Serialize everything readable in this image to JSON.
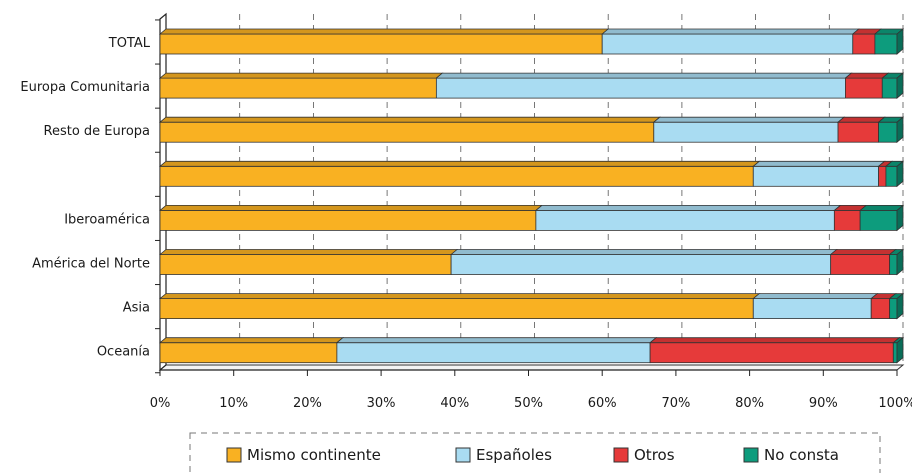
{
  "chart_data": {
    "type": "bar",
    "orientation": "horizontal",
    "stacked": "percent",
    "style": "3d",
    "categories": [
      "TOTAL",
      "Europa Comunitaria",
      "Resto de Europa",
      "",
      "Iberoamérica",
      "América del Norte",
      "Asia",
      "Oceanía"
    ],
    "series": [
      {
        "name": "Mismo continente",
        "color": "#f9b122",
        "values": [
          60,
          37.5,
          67,
          80.5,
          51,
          39.5,
          80.5,
          24
        ]
      },
      {
        "name": "Españoles",
        "color": "#a9dcf2",
        "values": [
          34,
          55.5,
          25,
          17,
          40.5,
          51.5,
          16,
          42.5
        ]
      },
      {
        "name": "Otros",
        "color": "#e63a3a",
        "values": [
          3,
          5,
          5.5,
          1,
          3.5,
          8,
          2.5,
          33
        ]
      },
      {
        "name": "No consta",
        "color": "#0d9c7d",
        "values": [
          3,
          2,
          2.5,
          1.5,
          5,
          1,
          1,
          0.5
        ]
      }
    ],
    "xlim": [
      0,
      100
    ],
    "x_ticks": [
      "0%",
      "10%",
      "20%",
      "30%",
      "40%",
      "50%",
      "60%",
      "70%",
      "80%",
      "90%",
      "100%"
    ],
    "grid": "vertical dashed",
    "legend_position": "bottom"
  }
}
